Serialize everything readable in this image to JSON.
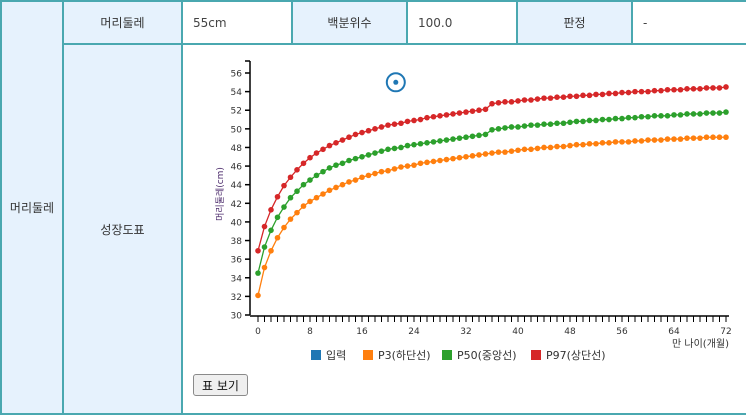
{
  "table": {
    "section_label": "머리둘레",
    "row1": {
      "measure_label": "머리둘레",
      "measure_value": "55cm",
      "percentile_label": "백분위수",
      "percentile_value": "100.0",
      "judgement_label": "판정",
      "judgement_value": "-"
    },
    "row2": {
      "chart_label": "성장도표",
      "table_button": "표 보기"
    }
  },
  "colors": {
    "border": "#4aa8b0",
    "header_bg": "#e6f2fd",
    "input": "#1f77b4",
    "p3": "#ff7f0e",
    "p50": "#2ca02c",
    "p97": "#d62728"
  },
  "chart_data": {
    "type": "line",
    "title": "",
    "xlabel": "만 나이(개월)",
    "ylabel": "머리둘레(cm)",
    "xlim": [
      0,
      72
    ],
    "ylim": [
      30,
      56
    ],
    "x_ticks": [
      0,
      8,
      16,
      24,
      32,
      40,
      48,
      56,
      64,
      72
    ],
    "y_ticks": [
      30,
      32,
      34,
      36,
      38,
      40,
      42,
      44,
      46,
      48,
      50,
      52,
      54,
      56
    ],
    "grid": false,
    "legend_position": "bottom",
    "legend": [
      "입력",
      "P3(하단선)",
      "P50(중앙선)",
      "P97(상단선)"
    ],
    "x": [
      0,
      1,
      2,
      3,
      4,
      5,
      6,
      7,
      8,
      9,
      10,
      11,
      12,
      13,
      14,
      15,
      16,
      17,
      18,
      19,
      20,
      21,
      22,
      23,
      24,
      25,
      26,
      27,
      28,
      29,
      30,
      31,
      32,
      33,
      34,
      35,
      36,
      37,
      38,
      39,
      40,
      41,
      42,
      43,
      44,
      45,
      46,
      47,
      48,
      49,
      50,
      51,
      52,
      53,
      54,
      55,
      56,
      57,
      58,
      59,
      60,
      61,
      62,
      63,
      64,
      65,
      66,
      67,
      68,
      69,
      70,
      71,
      72
    ],
    "series": [
      {
        "name": "P3(하단선)",
        "values": [
          32.1,
          35.1,
          36.9,
          38.3,
          39.4,
          40.3,
          41.0,
          41.7,
          42.2,
          42.6,
          43.0,
          43.4,
          43.7,
          44.0,
          44.3,
          44.5,
          44.8,
          45.0,
          45.2,
          45.4,
          45.5,
          45.7,
          45.9,
          46.0,
          46.1,
          46.3,
          46.4,
          46.5,
          46.6,
          46.7,
          46.8,
          46.9,
          47.0,
          47.1,
          47.2,
          47.3,
          47.4,
          47.5,
          47.5,
          47.6,
          47.7,
          47.8,
          47.8,
          47.9,
          48.0,
          48.0,
          48.1,
          48.1,
          48.2,
          48.3,
          48.3,
          48.4,
          48.4,
          48.5,
          48.5,
          48.6,
          48.6,
          48.6,
          48.7,
          48.7,
          48.8,
          48.8,
          48.8,
          48.9,
          48.9,
          48.9,
          49.0,
          49.0,
          49.0,
          49.1,
          49.1,
          49.1,
          49.1
        ]
      },
      {
        "name": "P50(중앙선)",
        "values": [
          34.5,
          37.3,
          39.1,
          40.5,
          41.6,
          42.6,
          43.3,
          44.0,
          44.5,
          45.0,
          45.4,
          45.8,
          46.1,
          46.3,
          46.6,
          46.8,
          47.0,
          47.2,
          47.4,
          47.6,
          47.8,
          47.9,
          48.0,
          48.2,
          48.3,
          48.4,
          48.5,
          48.6,
          48.7,
          48.8,
          48.9,
          49.0,
          49.1,
          49.2,
          49.3,
          49.4,
          49.9,
          50.0,
          50.1,
          50.2,
          50.2,
          50.3,
          50.4,
          50.4,
          50.5,
          50.5,
          50.6,
          50.6,
          50.7,
          50.8,
          50.8,
          50.9,
          50.9,
          51.0,
          51.0,
          51.1,
          51.1,
          51.2,
          51.2,
          51.3,
          51.3,
          51.4,
          51.4,
          51.4,
          51.5,
          51.5,
          51.6,
          51.6,
          51.6,
          51.7,
          51.7,
          51.7,
          51.8
        ]
      },
      {
        "name": "P97(상단선)",
        "values": [
          36.9,
          39.5,
          41.3,
          42.7,
          43.9,
          44.8,
          45.6,
          46.3,
          46.9,
          47.4,
          47.8,
          48.2,
          48.5,
          48.8,
          49.1,
          49.4,
          49.6,
          49.8,
          50.0,
          50.2,
          50.4,
          50.5,
          50.6,
          50.8,
          50.9,
          51.0,
          51.2,
          51.3,
          51.4,
          51.5,
          51.6,
          51.7,
          51.8,
          51.9,
          52.0,
          52.1,
          52.7,
          52.8,
          52.9,
          52.9,
          53.0,
          53.1,
          53.1,
          53.2,
          53.3,
          53.3,
          53.4,
          53.4,
          53.5,
          53.5,
          53.6,
          53.6,
          53.7,
          53.7,
          53.8,
          53.8,
          53.9,
          53.9,
          54.0,
          54.0,
          54.0,
          54.1,
          54.1,
          54.2,
          54.2,
          54.2,
          54.3,
          54.3,
          54.3,
          54.4,
          54.4,
          54.4,
          54.5
        ]
      },
      {
        "name": "입력",
        "points": [
          {
            "x": 21.2,
            "y": 55.0
          }
        ]
      }
    ]
  }
}
